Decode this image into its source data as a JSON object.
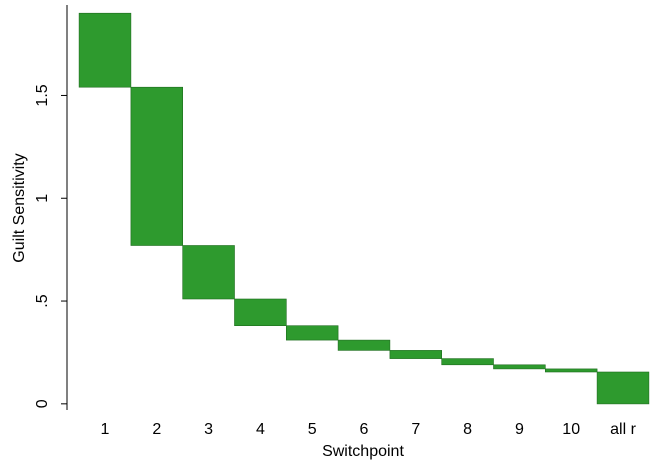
{
  "chart_data": {
    "type": "bar",
    "subtype": "floating-range",
    "title": "",
    "xlabel": "Switchpoint",
    "ylabel": "Guilt Sensitivity",
    "categories": [
      "1",
      "2",
      "3",
      "4",
      "5",
      "6",
      "7",
      "8",
      "9",
      "10",
      "all r"
    ],
    "ranges": [
      [
        1.54,
        1.9
      ],
      [
        0.77,
        1.54
      ],
      [
        0.51,
        0.77
      ],
      [
        0.38,
        0.51
      ],
      [
        0.31,
        0.38
      ],
      [
        0.26,
        0.31
      ],
      [
        0.22,
        0.26
      ],
      [
        0.19,
        0.22
      ],
      [
        0.17,
        0.19
      ],
      [
        0.155,
        0.17
      ],
      [
        0.0,
        0.155
      ]
    ],
    "yticks": [
      {
        "value": 0,
        "label": "0"
      },
      {
        "value": 0.5,
        "label": ".5"
      },
      {
        "value": 1,
        "label": "1"
      },
      {
        "value": 1.5,
        "label": "1.5"
      }
    ],
    "ylim": [
      -0.03,
      1.94
    ],
    "grid": false,
    "legend": "none",
    "colors": {
      "bar_fill": "#2e9a2e",
      "bar_stroke": "#1d6b1d",
      "axis": "#000000"
    }
  }
}
